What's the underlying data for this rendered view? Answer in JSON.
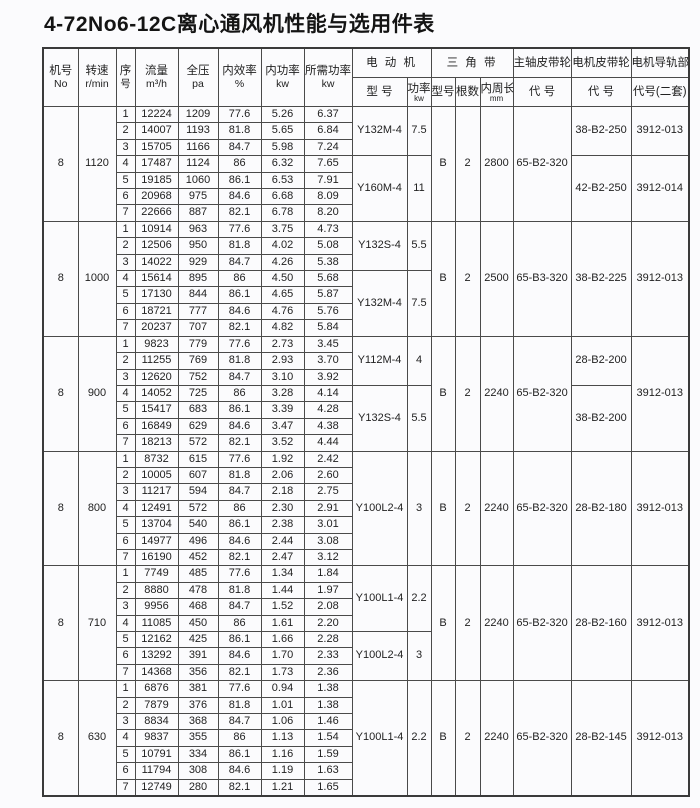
{
  "title": "4-72No6-12C离心通风机性能与选用件表",
  "table": {
    "headers": {
      "fan_no": {
        "line1": "机号",
        "line2": "No"
      },
      "speed": {
        "line1": "转速",
        "line2": "r/min"
      },
      "seq": {
        "line1": "序",
        "line2": "号"
      },
      "flow": {
        "line1": "流量",
        "line2": "m³/h"
      },
      "pressure": {
        "line1": "全压",
        "line2": "pa"
      },
      "efficiency": {
        "line1": "内效率",
        "line2": "%"
      },
      "internal_power": {
        "line1": "内功率",
        "line2": "kw"
      },
      "required_power": {
        "line1": "所需功率",
        "line2": "kw"
      },
      "motor_group": "电 动 机",
      "motor_model": "型 号",
      "motor_power": {
        "line1": "功率",
        "line2": "kw"
      },
      "vbelt_group": "三 角 带",
      "belt_model": "型号",
      "belt_count": "根数",
      "belt_length": {
        "line1": "内周长",
        "line2": "mm"
      },
      "main_pulley_group": "主轴皮带轮",
      "main_pulley_code": "代 号",
      "motor_pulley_group": "电机皮带轮",
      "motor_pulley_code": "代 号",
      "rail_group": "电机导轨部",
      "rail_code": "代号(二套)"
    },
    "sections": [
      {
        "fan_no": "8",
        "speed": "1120",
        "rows": [
          [
            "1",
            "12224",
            "1209",
            "77.6",
            "5.26",
            "6.37"
          ],
          [
            "2",
            "14007",
            "1193",
            "81.8",
            "5.65",
            "6.84"
          ],
          [
            "3",
            "15705",
            "1166",
            "84.7",
            "5.98",
            "7.24"
          ],
          [
            "4",
            "17487",
            "1124",
            "86",
            "6.32",
            "7.65"
          ],
          [
            "5",
            "19185",
            "1060",
            "86.1",
            "6.53",
            "7.91"
          ],
          [
            "6",
            "20968",
            "975",
            "84.6",
            "6.68",
            "8.09"
          ],
          [
            "7",
            "22666",
            "887",
            "82.1",
            "6.78",
            "8.20"
          ]
        ],
        "motors": [
          {
            "model": "Y132M-4",
            "power": "7.5",
            "span": 3
          },
          {
            "model": "Y160M-4",
            "power": "11",
            "span": 4
          }
        ],
        "belt": {
          "model": "B",
          "count": "2",
          "length": "2800"
        },
        "main_pulley": "65-B2-320",
        "motor_pulleys": [
          {
            "code": "38-B2-250",
            "span": 3
          },
          {
            "code": "42-B2-250",
            "span": 4
          }
        ],
        "rails": [
          {
            "code": "3912-013",
            "span": 3
          },
          {
            "code": "3912-014",
            "span": 4
          }
        ]
      },
      {
        "fan_no": "8",
        "speed": "1000",
        "rows": [
          [
            "1",
            "10914",
            "963",
            "77.6",
            "3.75",
            "4.73"
          ],
          [
            "2",
            "12506",
            "950",
            "81.8",
            "4.02",
            "5.08"
          ],
          [
            "3",
            "14022",
            "929",
            "84.7",
            "4.26",
            "5.38"
          ],
          [
            "4",
            "15614",
            "895",
            "86",
            "4.50",
            "5.68"
          ],
          [
            "5",
            "17130",
            "844",
            "86.1",
            "4.65",
            "5.87"
          ],
          [
            "6",
            "18721",
            "777",
            "84.6",
            "4.76",
            "5.76"
          ],
          [
            "7",
            "20237",
            "707",
            "82.1",
            "4.82",
            "5.84"
          ]
        ],
        "motors": [
          {
            "model": "Y132S-4",
            "power": "5.5",
            "span": 3
          },
          {
            "model": "Y132M-4",
            "power": "7.5",
            "span": 4
          }
        ],
        "belt": {
          "model": "B",
          "count": "2",
          "length": "2500"
        },
        "main_pulley": "65-B3-320",
        "motor_pulleys": [
          {
            "code": "38-B2-225",
            "span": 7
          }
        ],
        "rails": [
          {
            "code": "3912-013",
            "span": 7
          }
        ]
      },
      {
        "fan_no": "8",
        "speed": "900",
        "rows": [
          [
            "1",
            "9823",
            "779",
            "77.6",
            "2.73",
            "3.45"
          ],
          [
            "2",
            "11255",
            "769",
            "81.8",
            "2.93",
            "3.70"
          ],
          [
            "3",
            "12620",
            "752",
            "84.7",
            "3.10",
            "3.92"
          ],
          [
            "4",
            "14052",
            "725",
            "86",
            "3.28",
            "4.14"
          ],
          [
            "5",
            "15417",
            "683",
            "86.1",
            "3.39",
            "4.28"
          ],
          [
            "6",
            "16849",
            "629",
            "84.6",
            "3.47",
            "4.38"
          ],
          [
            "7",
            "18213",
            "572",
            "82.1",
            "3.52",
            "4.44"
          ]
        ],
        "motors": [
          {
            "model": "Y112M-4",
            "power": "4",
            "span": 3
          },
          {
            "model": "Y132S-4",
            "power": "5.5",
            "span": 4
          }
        ],
        "belt": {
          "model": "B",
          "count": "2",
          "length": "2240"
        },
        "main_pulley": "65-B2-320",
        "motor_pulleys": [
          {
            "code": "28-B2-200",
            "span": 3
          },
          {
            "code": "38-B2-200",
            "span": 4
          }
        ],
        "rails": [
          {
            "code": "3912-013",
            "span": 7
          }
        ]
      },
      {
        "fan_no": "8",
        "speed": "800",
        "rows": [
          [
            "1",
            "8732",
            "615",
            "77.6",
            "1.92",
            "2.42"
          ],
          [
            "2",
            "10005",
            "607",
            "81.8",
            "2.06",
            "2.60"
          ],
          [
            "3",
            "11217",
            "594",
            "84.7",
            "2.18",
            "2.75"
          ],
          [
            "4",
            "12491",
            "572",
            "86",
            "2.30",
            "2.91"
          ],
          [
            "5",
            "13704",
            "540",
            "86.1",
            "2.38",
            "3.01"
          ],
          [
            "6",
            "14977",
            "496",
            "84.6",
            "2.44",
            "3.08"
          ],
          [
            "7",
            "16190",
            "452",
            "82.1",
            "2.47",
            "3.12"
          ]
        ],
        "motors": [
          {
            "model": "Y100L2-4",
            "power": "3",
            "span": 7
          }
        ],
        "belt": {
          "model": "B",
          "count": "2",
          "length": "2240"
        },
        "main_pulley": "65-B2-320",
        "motor_pulleys": [
          {
            "code": "28-B2-180",
            "span": 7
          }
        ],
        "rails": [
          {
            "code": "3912-013",
            "span": 7
          }
        ]
      },
      {
        "fan_no": "8",
        "speed": "710",
        "rows": [
          [
            "1",
            "7749",
            "485",
            "77.6",
            "1.34",
            "1.84"
          ],
          [
            "2",
            "8880",
            "478",
            "81.8",
            "1.44",
            "1.97"
          ],
          [
            "3",
            "9956",
            "468",
            "84.7",
            "1.52",
            "2.08"
          ],
          [
            "4",
            "11085",
            "450",
            "86",
            "1.61",
            "2.20"
          ],
          [
            "5",
            "12162",
            "425",
            "86.1",
            "1.66",
            "2.28"
          ],
          [
            "6",
            "13292",
            "391",
            "84.6",
            "1.70",
            "2.33"
          ],
          [
            "7",
            "14368",
            "356",
            "82.1",
            "1.73",
            "2.36"
          ]
        ],
        "motors": [
          {
            "model": "Y100L1-4",
            "power": "2.2",
            "span": 4
          },
          {
            "model": "Y100L2-4",
            "power": "3",
            "span": 3
          }
        ],
        "belt": {
          "model": "B",
          "count": "2",
          "length": "2240"
        },
        "main_pulley": "65-B2-320",
        "motor_pulleys": [
          {
            "code": "28-B2-160",
            "span": 7
          }
        ],
        "rails": [
          {
            "code": "3912-013",
            "span": 7
          }
        ]
      },
      {
        "fan_no": "8",
        "speed": "630",
        "rows": [
          [
            "1",
            "6876",
            "381",
            "77.6",
            "0.94",
            "1.38"
          ],
          [
            "2",
            "7879",
            "376",
            "81.8",
            "1.01",
            "1.38"
          ],
          [
            "3",
            "8834",
            "368",
            "84.7",
            "1.06",
            "1.46"
          ],
          [
            "4",
            "9837",
            "355",
            "86",
            "1.13",
            "1.54"
          ],
          [
            "5",
            "10791",
            "334",
            "86.1",
            "1.16",
            "1.59"
          ],
          [
            "6",
            "11794",
            "308",
            "84.6",
            "1.19",
            "1.63"
          ],
          [
            "7",
            "12749",
            "280",
            "82.1",
            "1.21",
            "1.65"
          ]
        ],
        "motors": [
          {
            "model": "Y100L1-4",
            "power": "2.2",
            "span": 7
          }
        ],
        "belt": {
          "model": "B",
          "count": "2",
          "length": "2240"
        },
        "main_pulley": "65-B2-320",
        "motor_pulleys": [
          {
            "code": "28-B2-145",
            "span": 7
          }
        ],
        "rails": [
          {
            "code": "3912-013",
            "span": 7
          }
        ]
      }
    ]
  }
}
